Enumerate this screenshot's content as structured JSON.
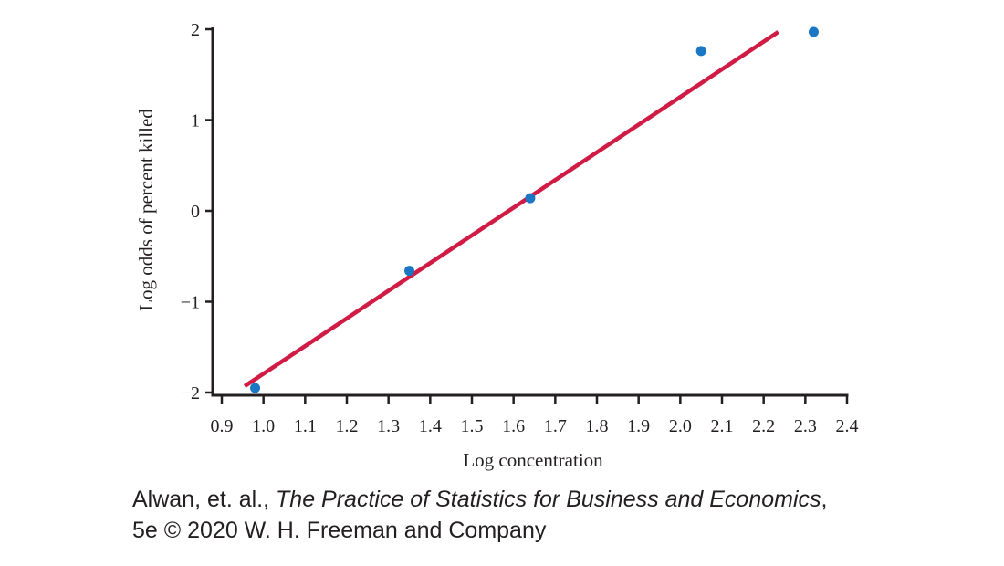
{
  "chart_data": {
    "type": "scatter",
    "xlabel": "Log concentration",
    "ylabel": "Log odds of percent killed",
    "xlim": [
      0.9,
      2.4
    ],
    "ylim": [
      -2,
      2
    ],
    "x_ticks": [
      0.9,
      1.0,
      1.1,
      1.2,
      1.3,
      1.4,
      1.5,
      1.6,
      1.7,
      1.8,
      1.9,
      2.0,
      2.1,
      2.2,
      2.3,
      2.4
    ],
    "x_tick_labels": [
      "0.9",
      "1.0",
      "1.1",
      "1.2",
      "1.3",
      "1.4",
      "1.5",
      "1.6",
      "1.7",
      "1.8",
      "1.9",
      "2.0",
      "2.1",
      "2.2",
      "2.3",
      "2.4"
    ],
    "y_ticks": [
      -2,
      -1,
      0,
      1,
      2
    ],
    "y_tick_labels": [
      "−2",
      "−1",
      "0",
      "1",
      "2"
    ],
    "points": [
      {
        "x": 0.98,
        "y": -1.95
      },
      {
        "x": 1.35,
        "y": -0.66
      },
      {
        "x": 1.64,
        "y": 0.14
      },
      {
        "x": 2.05,
        "y": 1.76
      },
      {
        "x": 2.32,
        "y": 1.97
      }
    ],
    "fit_line": {
      "x": [
        0.955,
        2.235
      ],
      "y": [
        -1.93,
        1.97
      ]
    },
    "grid": false,
    "colors": {
      "points": "#1a77c4",
      "line": "#d01b45",
      "axis": "#231f20"
    }
  },
  "credit": {
    "line1_prefix": "Alwan, et. al., ",
    "line1_title": "The Practice of Statistics for Business and Economics",
    "line1_suffix": ",",
    "line2": "5e © 2020 W. H. Freeman and Company"
  }
}
